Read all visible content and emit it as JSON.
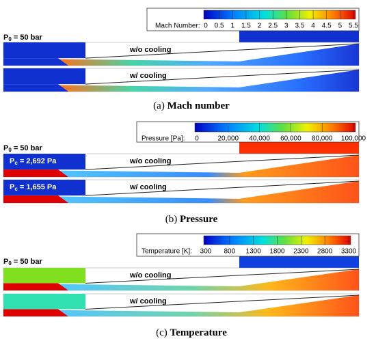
{
  "panels": [
    {
      "colorbar": {
        "label": "Mach Number:",
        "ticks": [
          "0",
          "0.5",
          "1",
          "1.5",
          "2",
          "2.5",
          "3",
          "3.5",
          "4",
          "4.5",
          "5",
          "5.5"
        ]
      },
      "inlet": {
        "symbol": "P",
        "subscript": "0",
        "rest": " = 50 bar"
      },
      "cases": [
        {
          "label": "w/o cooling"
        },
        {
          "label": "w/  cooling"
        }
      ],
      "caption": {
        "tag": "(a)",
        "text": "Mach number"
      }
    },
    {
      "colorbar": {
        "label": "Pressure [Pa]:",
        "ticks": [
          "0",
          "20,000",
          "40,000",
          "60,000",
          "80,000",
          "100,000"
        ]
      },
      "inlet": {
        "symbol": "P",
        "subscript": "0",
        "rest": " = 50 bar"
      },
      "cases": [
        {
          "label": "w/o cooling",
          "chamber": {
            "symbol": "P",
            "subscript": "c",
            "rest": " = 2,692 Pa"
          }
        },
        {
          "label": "w/ cooling",
          "chamber": {
            "symbol": "P",
            "subscript": "c",
            "rest": " = 1,655 Pa"
          }
        }
      ],
      "caption": {
        "tag": "(b)",
        "text": "Pressure"
      }
    },
    {
      "colorbar": {
        "label": "Temperature [K]:",
        "ticks": [
          "300",
          "800",
          "1300",
          "1800",
          "2300",
          "2800",
          "3300"
        ]
      },
      "inlet": {
        "symbol": "P",
        "subscript": "0",
        "rest": " = 50 bar"
      },
      "cases": [
        {
          "label": "w/o cooling"
        },
        {
          "label": "w/  cooling"
        }
      ],
      "caption": {
        "tag": "(c)",
        "text": "Temperature"
      }
    }
  ]
}
